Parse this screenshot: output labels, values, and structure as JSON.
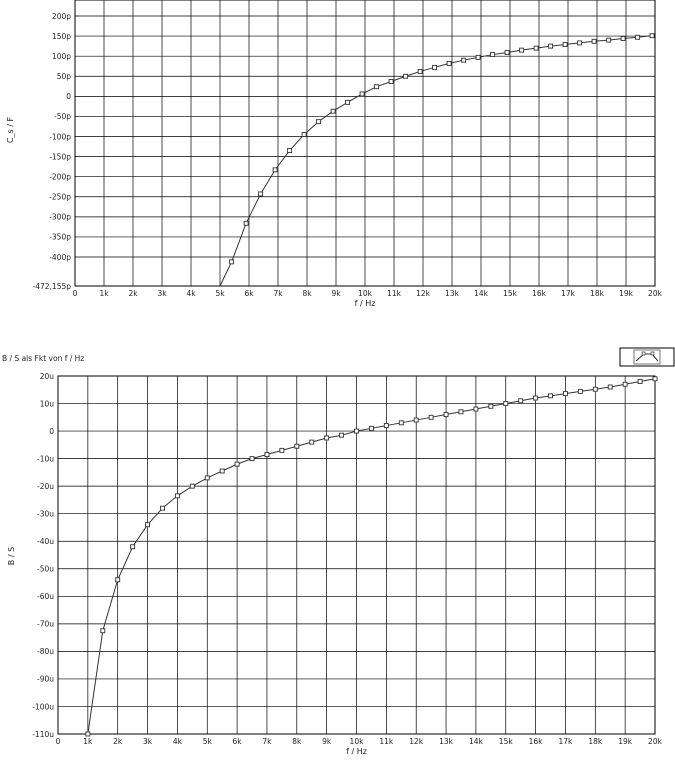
{
  "chart_data": [
    {
      "type": "line",
      "title": "",
      "xlabel": "f / Hz",
      "ylabel": "C_s / F",
      "xlim": [
        0,
        20000
      ],
      "ylim": [
        -472.155,
        200
      ],
      "y_unit": "pF",
      "grid": true,
      "x_ticks": [
        "0",
        "1k",
        "2k",
        "3k",
        "4k",
        "5k",
        "6k",
        "7k",
        "8k",
        "9k",
        "10k",
        "11k",
        "12k",
        "13k",
        "14k",
        "15k",
        "16k",
        "17k",
        "18k",
        "19k",
        "20k"
      ],
      "y_ticks": [
        "200p",
        "150p",
        "100p",
        "50p",
        "0",
        "-50p",
        "-100p",
        "-150p",
        "-200p",
        "-250p",
        "-300p",
        "-350p",
        "-400p",
        "-472,155p"
      ],
      "series": [
        {
          "x": [
            5000,
            5400,
            5900,
            6400,
            6900,
            7400,
            7900,
            8400,
            8900,
            9400,
            9900,
            10400,
            10900,
            11400,
            11900,
            12400,
            12900,
            13400,
            13900,
            14400,
            14900,
            15400,
            15900,
            16400,
            16900,
            17400,
            17900,
            18400,
            18900,
            19400,
            19900
          ],
          "y": [
            -472.155,
            -412,
            -316,
            -243,
            -183,
            -135,
            -95,
            -63,
            -37,
            -15,
            6,
            24,
            37,
            50,
            62,
            72,
            82,
            90,
            97,
            104,
            109,
            115,
            120,
            125,
            129,
            133,
            137,
            140,
            144,
            147,
            151
          ]
        }
      ]
    },
    {
      "type": "line",
      "title": "B / S  als Fkt von  f / Hz",
      "xlabel": "f / Hz",
      "ylabel": "B / S",
      "xlim": [
        0,
        20000
      ],
      "ylim": [
        -110,
        20
      ],
      "y_unit": "u",
      "grid": true,
      "x_ticks": [
        "0",
        "1k",
        "2k",
        "3k",
        "4k",
        "5k",
        "6k",
        "7k",
        "8k",
        "9k",
        "10k",
        "11k",
        "12k",
        "13k",
        "14k",
        "15k",
        "16k",
        "17k",
        "18k",
        "19k",
        "20k"
      ],
      "y_ticks": [
        "20u",
        "10u",
        "0",
        "-10u",
        "-20u",
        "-30u",
        "-40u",
        "-50u",
        "-60u",
        "-70u",
        "-80u",
        "-90u",
        "-100u",
        "-110u"
      ],
      "series": [
        {
          "x": [
            1000,
            1500,
            2000,
            2500,
            3000,
            3500,
            4000,
            4500,
            5000,
            5500,
            6000,
            6500,
            7000,
            7500,
            8000,
            8500,
            9000,
            9500,
            10000,
            10500,
            11000,
            11500,
            12000,
            12500,
            13000,
            13500,
            14000,
            14500,
            15000,
            15500,
            16000,
            16500,
            17000,
            17500,
            18000,
            18500,
            19000,
            19500,
            20000
          ],
          "y": [
            -110,
            -72.5,
            -54,
            -42,
            -34,
            -28,
            -23.5,
            -20,
            -17,
            -14.5,
            -12,
            -10,
            -8.5,
            -7,
            -5.5,
            -4,
            -2.5,
            -1.5,
            0,
            1,
            2,
            3,
            4,
            5,
            6,
            7,
            8,
            9,
            10,
            11,
            12,
            12.8,
            13.6,
            14.4,
            15.2,
            16,
            17,
            18,
            19
          ]
        }
      ]
    }
  ]
}
